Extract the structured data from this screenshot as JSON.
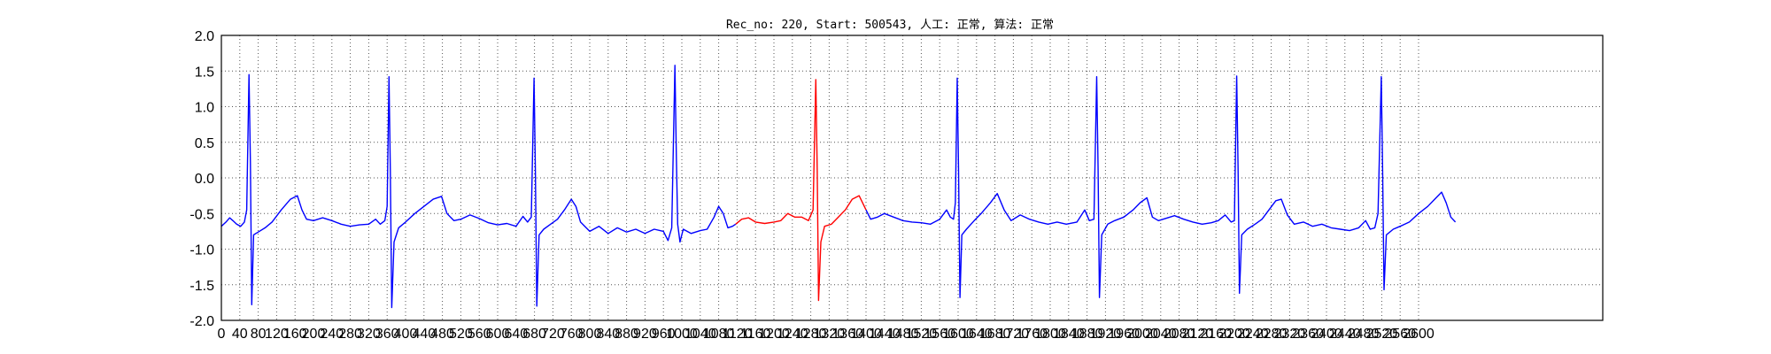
{
  "chart_data": {
    "type": "line",
    "title": "Rec_no: 220, Start: 500543, 人工: 正常, 算法: 正常",
    "xlabel": "",
    "ylabel": "",
    "xlim": [
      0,
      3000
    ],
    "ylim": [
      -2.0,
      2.0
    ],
    "grid": true,
    "y_ticks": [
      "2.0",
      "1.5",
      "1.0",
      "0.5",
      "0.0",
      "-0.5",
      "-1.0",
      "-1.5",
      "-2.0"
    ],
    "x_ticks": [
      "0",
      "40",
      "80",
      "120",
      "160",
      "200",
      "240",
      "280",
      "320",
      "360",
      "400",
      "440",
      "480",
      "520",
      "560",
      "600",
      "640",
      "680",
      "720",
      "760",
      "800",
      "840",
      "880",
      "920",
      "960",
      "1000",
      "1040",
      "1080",
      "1120",
      "1160",
      "1200",
      "1240",
      "1280",
      "1320",
      "1360",
      "1400",
      "1440",
      "1480",
      "1520",
      "1560",
      "1600",
      "1640",
      "1680",
      "1720",
      "1760",
      "1800",
      "1840",
      "1880",
      "1920",
      "1960",
      "2000",
      "2040",
      "2080",
      "2120",
      "2160",
      "2200",
      "2240",
      "2280",
      "2320",
      "2360",
      "2400",
      "2440",
      "2480",
      "2520",
      "2560",
      "2600"
    ],
    "colors": {
      "normal": "#0000ff",
      "highlight": "#ff0000"
    },
    "highlight_range": [
      1117,
      1400
    ],
    "r_peaks": [
      {
        "x": 60,
        "peak": 1.45,
        "trough": -1.78
      },
      {
        "x": 364,
        "peak": 1.42,
        "trough": -1.82
      },
      {
        "x": 679,
        "peak": 1.4,
        "trough": -1.8
      },
      {
        "x": 985,
        "peak": 1.58,
        "trough": -0.9
      },
      {
        "x": 1291,
        "peak": 1.38,
        "trough": -1.72
      },
      {
        "x": 1598,
        "peak": 1.4,
        "trough": -1.68
      },
      {
        "x": 1901,
        "peak": 1.42,
        "trough": -1.68
      },
      {
        "x": 2205,
        "peak": 1.43,
        "trough": -1.62
      },
      {
        "x": 2519,
        "peak": 1.42,
        "trough": -1.57
      }
    ],
    "series": [
      {
        "color": "#0000ff",
        "points": [
          [
            0,
            -0.68
          ],
          [
            10,
            -0.62
          ],
          [
            18,
            -0.56
          ],
          [
            25,
            -0.6
          ],
          [
            33,
            -0.65
          ],
          [
            42,
            -0.68
          ],
          [
            50,
            -0.62
          ],
          [
            55,
            -0.45
          ],
          [
            60,
            1.45
          ],
          [
            63,
            0.2
          ],
          [
            66,
            -1.78
          ],
          [
            70,
            -0.8
          ],
          [
            80,
            -0.76
          ],
          [
            95,
            -0.7
          ],
          [
            110,
            -0.62
          ],
          [
            130,
            -0.45
          ],
          [
            150,
            -0.3
          ],
          [
            165,
            -0.25
          ],
          [
            175,
            -0.45
          ],
          [
            185,
            -0.58
          ],
          [
            200,
            -0.6
          ],
          [
            220,
            -0.56
          ],
          [
            240,
            -0.6
          ],
          [
            260,
            -0.65
          ],
          [
            280,
            -0.68
          ],
          [
            300,
            -0.66
          ],
          [
            320,
            -0.65
          ],
          [
            335,
            -0.58
          ],
          [
            345,
            -0.65
          ],
          [
            355,
            -0.6
          ],
          [
            360,
            -0.4
          ],
          [
            364,
            1.42
          ],
          [
            367,
            0.1
          ],
          [
            370,
            -1.82
          ],
          [
            375,
            -0.9
          ],
          [
            385,
            -0.7
          ],
          [
            400,
            -0.62
          ],
          [
            420,
            -0.5
          ],
          [
            440,
            -0.4
          ],
          [
            460,
            -0.3
          ],
          [
            478,
            -0.26
          ],
          [
            490,
            -0.5
          ],
          [
            505,
            -0.6
          ],
          [
            520,
            -0.58
          ],
          [
            540,
            -0.52
          ],
          [
            560,
            -0.57
          ],
          [
            580,
            -0.63
          ],
          [
            600,
            -0.66
          ],
          [
            620,
            -0.64
          ],
          [
            640,
            -0.68
          ],
          [
            655,
            -0.54
          ],
          [
            665,
            -0.62
          ],
          [
            673,
            -0.55
          ],
          [
            679,
            1.4
          ],
          [
            682,
            0.1
          ],
          [
            685,
            -1.8
          ],
          [
            690,
            -0.8
          ],
          [
            700,
            -0.72
          ],
          [
            715,
            -0.65
          ],
          [
            730,
            -0.58
          ],
          [
            745,
            -0.45
          ],
          [
            760,
            -0.3
          ],
          [
            770,
            -0.4
          ],
          [
            780,
            -0.62
          ],
          [
            800,
            -0.75
          ],
          [
            820,
            -0.68
          ],
          [
            840,
            -0.78
          ],
          [
            860,
            -0.7
          ],
          [
            880,
            -0.76
          ],
          [
            900,
            -0.72
          ],
          [
            920,
            -0.78
          ],
          [
            940,
            -0.72
          ],
          [
            960,
            -0.75
          ],
          [
            970,
            -0.88
          ],
          [
            978,
            -0.7
          ],
          [
            985,
            1.58
          ],
          [
            988,
            0.3
          ],
          [
            991,
            -0.65
          ],
          [
            996,
            -0.9
          ],
          [
            1003,
            -0.72
          ],
          [
            1020,
            -0.78
          ],
          [
            1040,
            -0.74
          ],
          [
            1055,
            -0.72
          ],
          [
            1070,
            -0.55
          ],
          [
            1080,
            -0.4
          ],
          [
            1090,
            -0.5
          ],
          [
            1100,
            -0.7
          ],
          [
            1110,
            -0.68
          ],
          [
            1117,
            -0.65
          ]
        ]
      },
      {
        "color": "#ff0000",
        "points": [
          [
            1117,
            -0.65
          ],
          [
            1130,
            -0.58
          ],
          [
            1145,
            -0.56
          ],
          [
            1160,
            -0.62
          ],
          [
            1180,
            -0.64
          ],
          [
            1200,
            -0.62
          ],
          [
            1215,
            -0.6
          ],
          [
            1230,
            -0.5
          ],
          [
            1245,
            -0.55
          ],
          [
            1260,
            -0.55
          ],
          [
            1275,
            -0.6
          ],
          [
            1285,
            -0.45
          ],
          [
            1291,
            1.38
          ],
          [
            1294,
            0.1
          ],
          [
            1297,
            -1.72
          ],
          [
            1302,
            -0.9
          ],
          [
            1310,
            -0.68
          ],
          [
            1325,
            -0.65
          ],
          [
            1340,
            -0.55
          ],
          [
            1355,
            -0.45
          ],
          [
            1370,
            -0.3
          ],
          [
            1385,
            -0.25
          ],
          [
            1400,
            -0.45
          ]
        ]
      },
      {
        "color": "#0000ff",
        "points": [
          [
            1400,
            -0.45
          ],
          [
            1410,
            -0.58
          ],
          [
            1425,
            -0.55
          ],
          [
            1440,
            -0.5
          ],
          [
            1460,
            -0.55
          ],
          [
            1480,
            -0.6
          ],
          [
            1500,
            -0.62
          ],
          [
            1520,
            -0.63
          ],
          [
            1540,
            -0.65
          ],
          [
            1560,
            -0.58
          ],
          [
            1575,
            -0.45
          ],
          [
            1583,
            -0.55
          ],
          [
            1590,
            -0.58
          ],
          [
            1594,
            -0.35
          ],
          [
            1598,
            1.4
          ],
          [
            1601,
            0.1
          ],
          [
            1604,
            -1.68
          ],
          [
            1608,
            -0.8
          ],
          [
            1618,
            -0.72
          ],
          [
            1635,
            -0.6
          ],
          [
            1650,
            -0.5
          ],
          [
            1670,
            -0.35
          ],
          [
            1685,
            -0.22
          ],
          [
            1700,
            -0.45
          ],
          [
            1715,
            -0.6
          ],
          [
            1735,
            -0.52
          ],
          [
            1755,
            -0.58
          ],
          [
            1775,
            -0.62
          ],
          [
            1795,
            -0.65
          ],
          [
            1815,
            -0.62
          ],
          [
            1835,
            -0.65
          ],
          [
            1858,
            -0.62
          ],
          [
            1875,
            -0.45
          ],
          [
            1885,
            -0.6
          ],
          [
            1895,
            -0.58
          ],
          [
            1901,
            1.42
          ],
          [
            1904,
            0.1
          ],
          [
            1907,
            -1.68
          ],
          [
            1912,
            -0.8
          ],
          [
            1925,
            -0.65
          ],
          [
            1940,
            -0.6
          ],
          [
            1960,
            -0.55
          ],
          [
            1980,
            -0.45
          ],
          [
            1995,
            -0.35
          ],
          [
            2010,
            -0.28
          ],
          [
            2022,
            -0.55
          ],
          [
            2035,
            -0.6
          ],
          [
            2050,
            -0.57
          ],
          [
            2070,
            -0.53
          ],
          [
            2090,
            -0.58
          ],
          [
            2110,
            -0.62
          ],
          [
            2130,
            -0.65
          ],
          [
            2150,
            -0.63
          ],
          [
            2165,
            -0.6
          ],
          [
            2180,
            -0.52
          ],
          [
            2193,
            -0.62
          ],
          [
            2200,
            -0.6
          ],
          [
            2205,
            1.43
          ],
          [
            2208,
            0.1
          ],
          [
            2211,
            -1.62
          ],
          [
            2216,
            -0.8
          ],
          [
            2228,
            -0.72
          ],
          [
            2245,
            -0.65
          ],
          [
            2260,
            -0.58
          ],
          [
            2275,
            -0.45
          ],
          [
            2290,
            -0.32
          ],
          [
            2302,
            -0.3
          ],
          [
            2315,
            -0.52
          ],
          [
            2330,
            -0.65
          ],
          [
            2350,
            -0.62
          ],
          [
            2370,
            -0.68
          ],
          [
            2390,
            -0.65
          ],
          [
            2410,
            -0.7
          ],
          [
            2430,
            -0.72
          ],
          [
            2450,
            -0.74
          ],
          [
            2470,
            -0.7
          ],
          [
            2485,
            -0.6
          ],
          [
            2495,
            -0.72
          ],
          [
            2505,
            -0.7
          ],
          [
            2512,
            -0.5
          ],
          [
            2519,
            1.42
          ],
          [
            2522,
            0.1
          ],
          [
            2525,
            -1.57
          ],
          [
            2530,
            -0.8
          ],
          [
            2545,
            -0.72
          ],
          [
            2560,
            -0.68
          ],
          [
            2580,
            -0.62
          ],
          [
            2600,
            -0.5
          ],
          [
            2620,
            -0.4
          ],
          [
            2635,
            -0.3
          ],
          [
            2650,
            -0.2
          ],
          [
            2660,
            -0.35
          ],
          [
            2670,
            -0.55
          ],
          [
            2680,
            -0.62
          ]
        ]
      }
    ]
  }
}
